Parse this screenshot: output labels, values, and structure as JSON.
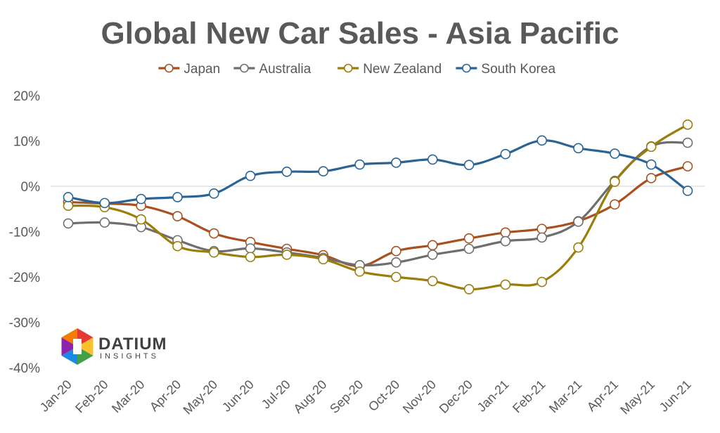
{
  "chart_data": {
    "type": "line",
    "title": "Global New Car Sales - Asia Pacific",
    "xlabel": "",
    "ylabel": "",
    "categories": [
      "Jan-20",
      "Feb-20",
      "Mar-20",
      "Apr-20",
      "May-20",
      "Jun-20",
      "Jul-20",
      "Aug-20",
      "Sep-20",
      "Oct-20",
      "Nov-20",
      "Dec-20",
      "Jan-21",
      "Feb-21",
      "Mar-21",
      "Apr-21",
      "May-21",
      "Jun-21"
    ],
    "y_ticks": [
      "20%",
      "10%",
      "0%",
      "-10%",
      "-20%",
      "-30%",
      "-40%"
    ],
    "ylim": [
      -40,
      20
    ],
    "grid": false,
    "zero_line": true,
    "legend_position": "top",
    "series": [
      {
        "name": "Japan",
        "color": "#A9501E",
        "values": [
          -3.5,
          -3.8,
          -4.3,
          -6.6,
          -10.4,
          -12.3,
          -13.8,
          -15.2,
          -17.6,
          -14.3,
          -13.0,
          -11.5,
          -10.2,
          -9.4,
          -7.7,
          -4.0,
          1.8,
          4.4
        ]
      },
      {
        "name": "Australia",
        "color": "#6E6E6E",
        "values": [
          -8.2,
          -8.0,
          -9.0,
          -11.9,
          -14.3,
          -13.7,
          -14.6,
          -15.8,
          -17.4,
          -16.8,
          -15.1,
          -13.8,
          -12.1,
          -11.3,
          -7.8,
          1.2,
          8.8,
          9.6
        ]
      },
      {
        "name": "New Zealand",
        "color": "#9A7D0A",
        "values": [
          -4.3,
          -4.6,
          -7.3,
          -13.2,
          -14.6,
          -15.6,
          -15.1,
          -16.1,
          -18.8,
          -20.0,
          -20.9,
          -22.7,
          -21.7,
          -21.1,
          -13.5,
          1.0,
          8.7,
          13.6
        ]
      },
      {
        "name": "South Korea",
        "color": "#2A6496",
        "values": [
          -2.4,
          -3.7,
          -2.8,
          -2.4,
          -1.6,
          2.3,
          3.2,
          3.3,
          4.8,
          5.2,
          5.9,
          4.7,
          7.1,
          10.1,
          8.4,
          7.2,
          4.8,
          -1.0
        ]
      }
    ]
  },
  "logo": {
    "name": "DATIUM",
    "tagline": "INSIGHTS",
    "colors": [
      "#E53935",
      "#FBC02D",
      "#43A047",
      "#1E88E5",
      "#8E24AA",
      "#F57C00"
    ]
  }
}
